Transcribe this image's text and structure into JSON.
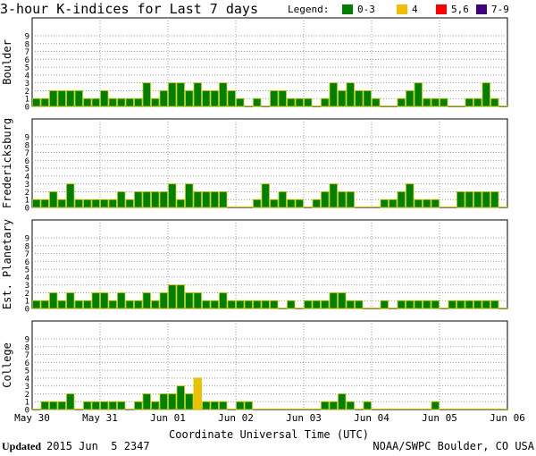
{
  "chart_data": {
    "type": "bar",
    "title": "3-hour K-indices for Last 7 days",
    "legend": {
      "label": "Legend:",
      "placement": "top-right",
      "items": [
        {
          "label": "0-3",
          "color": "#008000"
        },
        {
          "label": "4",
          "color": "#f0c000"
        },
        {
          "label": "5,6",
          "color": "#ff0000"
        },
        {
          "label": "7-9",
          "color": "#400080"
        }
      ]
    },
    "ylim": [
      0,
      9
    ],
    "yticks": [
      "0",
      "1",
      "2",
      "3",
      "4",
      "5",
      "6",
      "7",
      "8",
      "9"
    ],
    "xlabel": "Coordinate Universal Time (UTC)",
    "xticks": [
      "May 30",
      "May 31",
      "Jun 01",
      "Jun 02",
      "Jun 03",
      "Jun 04",
      "Jun 05",
      "Jun 06"
    ],
    "bins_per_day": 8,
    "series": [
      {
        "name": "Boulder",
        "values": [
          1,
          1,
          2,
          2,
          2,
          2,
          1,
          1,
          2,
          1,
          1,
          1,
          1,
          3,
          1,
          2,
          3,
          3,
          2,
          3,
          2,
          2,
          3,
          2,
          1,
          0,
          1,
          0,
          2,
          2,
          1,
          1,
          1,
          0,
          1,
          3,
          2,
          3,
          2,
          2,
          1,
          0,
          0,
          1,
          2,
          3,
          1,
          1,
          1,
          0,
          0,
          1,
          1,
          3,
          1,
          0
        ]
      },
      {
        "name": "Fredericksburg",
        "values": [
          1,
          1,
          2,
          1,
          3,
          1,
          1,
          1,
          1,
          1,
          2,
          1,
          2,
          2,
          2,
          2,
          3,
          1,
          3,
          2,
          2,
          2,
          2,
          0,
          0,
          0,
          1,
          3,
          1,
          2,
          1,
          1,
          0,
          1,
          2,
          3,
          2,
          2,
          0,
          0,
          0,
          1,
          1,
          2,
          3,
          1,
          1,
          1,
          0,
          0,
          2,
          2,
          2,
          2,
          2,
          0
        ]
      },
      {
        "name": "Est. Planetary",
        "values": [
          1,
          1,
          2,
          1,
          2,
          1,
          1,
          2,
          2,
          1,
          2,
          1,
          1,
          2,
          1,
          2,
          3,
          3,
          2,
          2,
          1,
          1,
          2,
          1,
          1,
          1,
          1,
          1,
          1,
          0,
          1,
          0,
          1,
          1,
          1,
          2,
          2,
          1,
          1,
          0,
          0,
          1,
          0,
          1,
          1,
          1,
          1,
          1,
          0,
          1,
          1,
          1,
          1,
          1,
          1,
          0
        ]
      },
      {
        "name": "College",
        "values": [
          0,
          1,
          1,
          1,
          2,
          0,
          1,
          1,
          1,
          1,
          1,
          0,
          1,
          2,
          1,
          2,
          2,
          3,
          2,
          4,
          1,
          1,
          1,
          0,
          1,
          1,
          0,
          0,
          0,
          0,
          0,
          0,
          0,
          0,
          1,
          1,
          2,
          1,
          0,
          1,
          0,
          0,
          0,
          0,
          0,
          0,
          0,
          1,
          0,
          0,
          0,
          0,
          0,
          0,
          0,
          0
        ]
      }
    ]
  },
  "footer": {
    "updated_label": "Updated",
    "updated_value": "2015 Jun  5 2347",
    "credit": "NOAA/SWPC Boulder, CO USA"
  }
}
